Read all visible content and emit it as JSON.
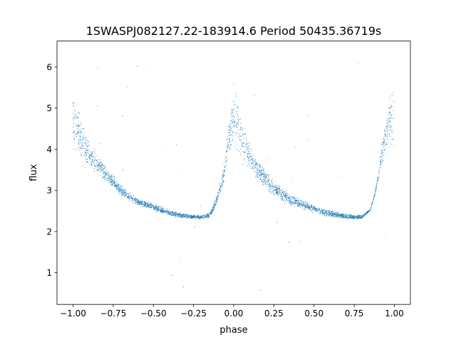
{
  "chart_data": {
    "type": "scatter",
    "title": "1SWASPJ082127.22-183914.6 Period 50435.36719s",
    "xlabel": "phase",
    "ylabel": "flux",
    "xlim": [
      -1.1,
      1.1
    ],
    "ylim": [
      0.23,
      6.63
    ],
    "xticks": [
      -1.0,
      -0.75,
      -0.5,
      -0.25,
      0.0,
      0.25,
      0.5,
      0.75,
      1.0
    ],
    "xtick_labels": [
      "−1.00",
      "−0.75",
      "−0.50",
      "−0.25",
      "0.00",
      "0.25",
      "0.50",
      "0.75",
      "1.00"
    ],
    "yticks": [
      1,
      2,
      3,
      4,
      5,
      6
    ],
    "ytick_labels": [
      "1",
      "2",
      "3",
      "4",
      "5",
      "6"
    ],
    "grid": false,
    "series": [
      {
        "color": "#1f77b4",
        "marker_size": "tiny",
        "envelope_x": [
          -1.0,
          -0.95,
          -0.9,
          -0.85,
          -0.8,
          -0.75,
          -0.7,
          -0.65,
          -0.6,
          -0.55,
          -0.5,
          -0.45,
          -0.4,
          -0.35,
          -0.3,
          -0.25,
          -0.2,
          -0.15,
          -0.12,
          -0.08,
          -0.05,
          -0.03,
          0.0,
          0.02,
          0.05,
          0.08,
          0.1,
          0.15,
          0.2,
          0.25,
          0.3,
          0.35,
          0.4,
          0.45,
          0.5,
          0.55,
          0.6,
          0.65,
          0.7,
          0.75,
          0.8,
          0.85,
          0.88,
          0.9,
          0.92,
          0.95,
          0.97,
          1.0
        ],
        "envelope_y_lower": [
          3.8,
          3.55,
          3.45,
          3.3,
          3.15,
          3.0,
          2.85,
          2.7,
          2.6,
          2.55,
          2.5,
          2.42,
          2.35,
          2.32,
          2.3,
          2.3,
          2.28,
          2.3,
          2.5,
          2.85,
          3.25,
          3.7,
          3.85,
          3.8,
          3.55,
          3.45,
          3.35,
          3.15,
          3.0,
          2.85,
          2.7,
          2.6,
          2.55,
          2.5,
          2.42,
          2.35,
          2.32,
          2.3,
          2.3,
          2.28,
          2.3,
          2.5,
          2.9,
          3.2,
          3.5,
          3.8,
          3.9,
          3.85
        ],
        "envelope_y_upper": [
          5.6,
          4.9,
          4.35,
          4.0,
          3.7,
          3.4,
          3.15,
          2.98,
          2.85,
          2.78,
          2.7,
          2.62,
          2.56,
          2.5,
          2.45,
          2.42,
          2.42,
          2.5,
          2.75,
          3.3,
          4.1,
          5.0,
          5.6,
          5.5,
          5.0,
          4.55,
          4.3,
          3.85,
          3.55,
          3.3,
          3.1,
          2.95,
          2.85,
          2.75,
          2.68,
          2.6,
          2.55,
          2.5,
          2.45,
          2.42,
          2.42,
          2.55,
          2.95,
          3.5,
          4.2,
          5.0,
          5.5,
          5.7
        ],
        "n_points": 9000
      }
    ]
  }
}
